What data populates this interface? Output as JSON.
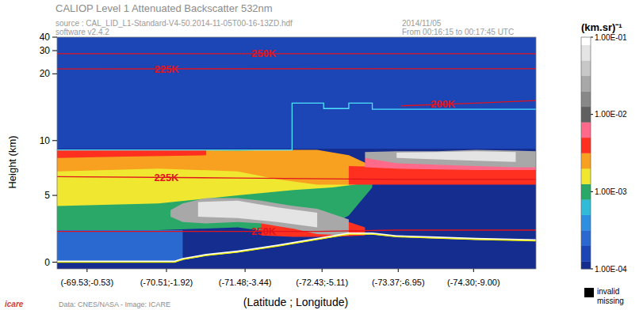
{
  "chart_data": {
    "type": "heatmap",
    "title": "CALIOP Level 1 Attenuated Backscatter 532nm",
    "source_text": "source : CAL_LID_L1-Standard-V4-50.2014-11-05T00-16-13ZD.hdf",
    "software_text": "software v2.4.2",
    "date_text": "2014/11/05",
    "time_text": "From 00:16:15 to 00:17:45 UTC",
    "x_label": "(Latitude ; Longitude)",
    "y_label": "Height (km)",
    "xlim": [
      -69.16,
      -75.07
    ],
    "xticks": [
      {
        "value": -69.53,
        "label": "(-69.53;-0.53)"
      },
      {
        "value": -70.51,
        "label": "(-70.51;-1.92)"
      },
      {
        "value": -71.48,
        "label": "(-71.48;-3.44)"
      },
      {
        "value": -72.43,
        "label": "(-72.43;-5.11)"
      },
      {
        "value": -73.37,
        "label": "(-73.37;-6.95)"
      },
      {
        "value": -74.3,
        "label": "(-74.30;-9.00)"
      }
    ],
    "ylim": [
      -0.5,
      40
    ],
    "yticks": [
      0,
      5,
      10,
      20,
      30,
      40
    ],
    "colorbar": {
      "label": "(km.sr)⁻¹",
      "log": true,
      "range": [
        0.0001,
        0.1
      ],
      "ticks": [
        {
          "value": 0.0001,
          "label": "1.00E-04"
        },
        {
          "value": 0.001,
          "label": "1.00E-03"
        },
        {
          "value": 0.01,
          "label": "1.00E-02"
        },
        {
          "value": 0.1,
          "label": "1.00E-01"
        }
      ],
      "colors": [
        "#142d8f",
        "#1c45b5",
        "#2a6ad0",
        "#2e8fe0",
        "#30bcd8",
        "#2aa868",
        "#f0e830",
        "#f8a020",
        "#ff3020",
        "#ff6a8a",
        "#606060",
        "#888888",
        "#a8a8a8",
        "#c8c8c8",
        "#e4e4e4",
        "#ffffff"
      ]
    },
    "background": 0.00011,
    "features": [
      {
        "x": [
          -69.16,
          -75.07
        ],
        "top": [
          40,
          40
        ],
        "base": [
          8.8,
          8.8
        ],
        "value": 0.00018
      },
      {
        "x": [
          -69.16,
          -70.71
        ],
        "top": [
          2.4,
          2.4
        ],
        "base": [
          0.1,
          0.1
        ],
        "value": 0.0003
      },
      {
        "x": [
          -69.16,
          -70.41,
          -71.39,
          -71.88,
          -72.37,
          -72.76,
          -73.05
        ],
        "top": [
          8.6,
          8.6,
          8.6,
          8.6,
          8.4,
          7.6,
          6.6
        ],
        "base": [
          2.4,
          2.4,
          2.6,
          2.2,
          2.2,
          3.5,
          5.6
        ],
        "value": 0.0011
      },
      {
        "x": [
          -69.16,
          -70.41,
          -71.39,
          -72.08,
          -72.56,
          -72.96
        ],
        "top": [
          8.4,
          8.4,
          8.4,
          8.3,
          7.8,
          6.8
        ],
        "base": [
          4.2,
          4.4,
          5.0,
          5.4,
          5.6,
          5.9
        ],
        "value": 0.0016
      },
      {
        "x": [
          -69.16,
          -70.41,
          -71.39,
          -71.88,
          -72.37,
          -72.76,
          -73.05
        ],
        "top": [
          8.6,
          8.6,
          8.5,
          8.6,
          8.6,
          8.0,
          7.2
        ],
        "base": [
          6.8,
          7.0,
          6.8,
          6.2,
          5.8,
          5.8,
          6.0
        ],
        "value": 0.0026
      },
      {
        "x": [
          -69.16,
          -70.0,
          -71.0
        ],
        "top": [
          8.6,
          8.6,
          8.6
        ],
        "base": [
          7.8,
          7.9,
          8.0
        ],
        "value": 0.004
      },
      {
        "x": [
          -72.76,
          -73.35,
          -74.33,
          -75.07
        ],
        "top": [
          7.2,
          7.1,
          7.0,
          7.0
        ],
        "base": [
          5.8,
          5.8,
          5.8,
          5.8
        ],
        "value": 0.0042
      },
      {
        "x": [
          -72.96,
          -73.35,
          -74.33,
          -75.07
        ],
        "top": [
          7.8,
          7.6,
          7.4,
          7.3
        ],
        "base": [
          7.1,
          7.0,
          6.9,
          6.9
        ],
        "value": 0.0065
      },
      {
        "x": [
          -72.96,
          -73.35,
          -73.84,
          -74.33,
          -74.82,
          -75.07
        ],
        "top": [
          8.3,
          8.4,
          8.4,
          8.6,
          8.5,
          8.4
        ],
        "base": [
          7.8,
          7.4,
          7.3,
          7.2,
          7.1,
          7.1
        ],
        "value": 0.022
      },
      {
        "x": [
          -73.35,
          -73.84,
          -74.33,
          -74.82
        ],
        "top": [
          8.2,
          8.3,
          8.4,
          8.3
        ],
        "base": [
          7.8,
          7.7,
          7.6,
          7.5
        ],
        "value": 0.06
      },
      {
        "x": [
          -71.68,
          -72.08,
          -72.56,
          -72.96
        ],
        "top": [
          4.0,
          3.8,
          3.4,
          2.6
        ],
        "base": [
          2.0,
          1.9,
          1.9,
          2.0
        ],
        "value": 0.0042
      },
      {
        "x": [
          -70.56,
          -70.71,
          -71.0,
          -71.39,
          -71.68,
          -71.88,
          -72.08,
          -72.37,
          -72.76
        ],
        "top": [
          3.9,
          4.4,
          4.8,
          4.8,
          4.6,
          4.4,
          4.2,
          4.0,
          3.2
        ],
        "base": [
          3.4,
          3.0,
          2.9,
          3.0,
          2.9,
          2.7,
          2.5,
          2.1,
          2.0
        ],
        "value": 0.022
      },
      {
        "x": [
          -70.9,
          -71.39,
          -71.88,
          -72.37
        ],
        "top": [
          4.5,
          4.6,
          4.1,
          3.7
        ],
        "base": [
          3.4,
          3.3,
          3.0,
          2.6
        ],
        "value": 0.06
      },
      {
        "x": [
          -69.16,
          -70.61,
          -70.71,
          -71.0,
          -71.39,
          -71.88,
          -72.37,
          -72.76,
          -73.05,
          -73.35,
          -73.84,
          -74.33,
          -75.07
        ],
        "top": [
          0.12,
          0.12,
          0.32,
          0.62,
          0.87,
          1.32,
          1.82,
          2.22,
          2.22,
          2.02,
          1.92,
          1.82,
          1.72
        ],
        "base": [
          -0.02,
          -0.02,
          0.18,
          0.48,
          0.73,
          1.18,
          1.68,
          2.08,
          2.08,
          1.88,
          1.78,
          1.68,
          1.58
        ],
        "value": 0.1
      }
    ],
    "lines": [
      {
        "x": [
          -69.16,
          -75.07
        ],
        "values": [
          28.6,
          28.6
        ],
        "color": "#e0141e",
        "label": "250K",
        "label_x": -71.71
      },
      {
        "x": [
          -69.16,
          -75.07
        ],
        "values": [
          21.8,
          21.9
        ],
        "color": "#e0141e",
        "label": "225K",
        "label_x": -70.51
      },
      {
        "x": [
          -73.4,
          -74.33,
          -75.07
        ],
        "values": [
          15.2,
          15.6,
          16.0
        ],
        "color": "#e0141e",
        "label": "200K",
        "label_x": -73.92
      },
      {
        "x": [
          -69.16,
          -71.39,
          -73.35,
          -75.07
        ],
        "values": [
          6.4,
          6.3,
          6.2,
          6.2
        ],
        "color": "#e0141e",
        "label": "225K",
        "label_x": -70.51
      },
      {
        "x": [
          -69.16,
          -71.39,
          -72.37,
          -73.35,
          -75.07
        ],
        "values": [
          2.3,
          2.3,
          2.3,
          2.4,
          2.4
        ],
        "color": "#e0141e",
        "label": "250K",
        "label_x": -71.71
      },
      {
        "x": [
          -69.16,
          -72.06,
          -72.06,
          -72.45,
          -72.45,
          -72.76,
          -72.76,
          -73.05,
          -73.05,
          -75.07
        ],
        "values": [
          8.6,
          8.6,
          15.6,
          15.6,
          14.8,
          14.8,
          15.6,
          15.6,
          14.7,
          14.7
        ],
        "color": "#4fe3ff"
      },
      {
        "x": [
          -69.16,
          -70.61,
          -70.71,
          -71.0,
          -71.39,
          -71.88,
          -72.37,
          -72.76,
          -73.05,
          -73.35,
          -73.84,
          -74.33,
          -75.07
        ],
        "values": [
          0.0,
          0.0,
          0.2,
          0.5,
          0.75,
          1.2,
          1.7,
          2.1,
          2.1,
          1.9,
          1.8,
          1.7,
          1.6
        ],
        "color": "#f0f000"
      }
    ],
    "missing_legend": [
      "invalid",
      "missing"
    ],
    "credit": "Data: CNES/NASA - Image: ICARE",
    "logo": "icare"
  }
}
